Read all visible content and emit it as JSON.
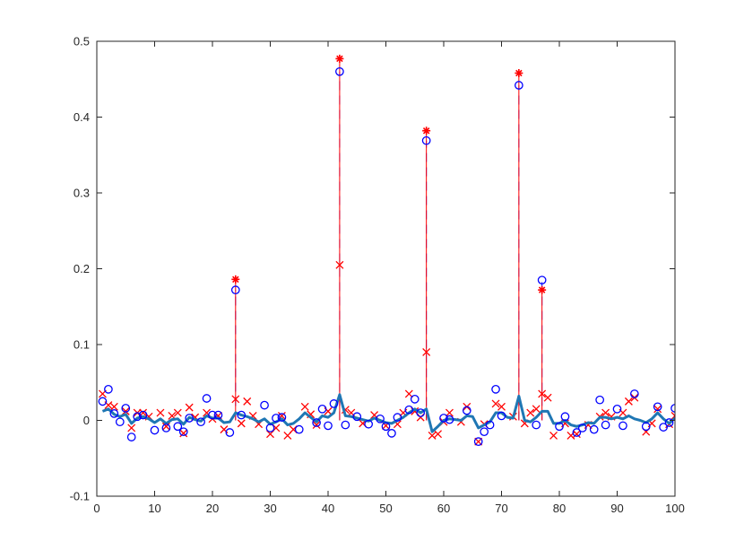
{
  "chart_data": {
    "type": "scatter",
    "title": "",
    "xlabel": "",
    "ylabel": "",
    "xlim": [
      0,
      100
    ],
    "ylim": [
      -0.1,
      0.5
    ],
    "xticks": [
      0,
      10,
      20,
      30,
      40,
      50,
      60,
      70,
      80,
      90,
      100
    ],
    "yticks": [
      -0.1,
      0,
      0.1,
      0.2,
      0.3,
      0.4,
      0.5
    ],
    "xtick_labels": [
      "0",
      "10",
      "20",
      "30",
      "40",
      "50",
      "60",
      "70",
      "80",
      "90",
      "100"
    ],
    "ytick_labels": [
      "-0.1",
      "0",
      "0.1",
      "0.2",
      "0.3",
      "0.4",
      "0.5"
    ],
    "grid": false,
    "legend": null,
    "series": [
      {
        "marker": "star",
        "style": "stem-solid",
        "color": "#ff0000",
        "x": [
          24,
          42,
          57,
          73,
          77
        ],
        "y": [
          0.186,
          0.477,
          0.382,
          0.458,
          0.172
        ]
      },
      {
        "marker": "circle",
        "style": "stem-dashed",
        "color": "#0000ff",
        "x": [
          1,
          2,
          3,
          4,
          5,
          6,
          7,
          8,
          10,
          12,
          14,
          15,
          16,
          18,
          19,
          20,
          21,
          23,
          24,
          25,
          29,
          30,
          31,
          32,
          35,
          38,
          39,
          40,
          41,
          42,
          43,
          45,
          47,
          49,
          50,
          51,
          52,
          54,
          55,
          56,
          57,
          60,
          61,
          64,
          66,
          67,
          68,
          69,
          70,
          73,
          76,
          77,
          80,
          81,
          83,
          84,
          86,
          87,
          88,
          90,
          91,
          93,
          95,
          97,
          98,
          99,
          100
        ],
        "y": [
          0.025,
          0.041,
          0.009,
          -0.002,
          0.016,
          -0.022,
          0.005,
          0.007,
          -0.013,
          -0.01,
          -0.008,
          -0.015,
          0.003,
          -0.002,
          0.029,
          0.007,
          0.007,
          -0.016,
          0.172,
          0.007,
          0.02,
          -0.01,
          0.003,
          0.004,
          -0.012,
          -0.003,
          0.015,
          -0.007,
          0.022,
          0.46,
          -0.006,
          0.005,
          -0.005,
          0.002,
          -0.008,
          -0.017,
          0.004,
          0.014,
          0.028,
          0.01,
          0.369,
          0.003,
          0.001,
          0.013,
          -0.028,
          -0.015,
          -0.006,
          0.041,
          0.006,
          0.442,
          -0.006,
          0.185,
          -0.008,
          0.005,
          -0.016,
          -0.01,
          -0.012,
          0.027,
          -0.006,
          0.015,
          -0.007,
          0.035,
          -0.008,
          0.018,
          -0.009,
          -0.003,
          0.016
        ]
      },
      {
        "marker": "x",
        "style": "markers",
        "color": "#ff0000",
        "x": [
          1,
          2,
          3,
          5,
          6,
          7,
          8,
          9,
          11,
          12,
          13,
          14,
          15,
          16,
          17,
          19,
          20,
          21,
          22,
          24,
          25,
          26,
          27,
          28,
          30,
          31,
          32,
          33,
          34,
          36,
          37,
          38,
          40,
          42,
          43,
          44,
          46,
          48,
          50,
          52,
          53,
          54,
          55,
          56,
          57,
          58,
          59,
          60,
          61,
          63,
          64,
          66,
          67,
          69,
          70,
          72,
          74,
          75,
          76,
          77,
          78,
          79,
          81,
          82,
          83,
          85,
          87,
          88,
          89,
          91,
          92,
          93,
          95,
          96,
          97,
          99,
          100
        ],
        "y": [
          0.035,
          0.02,
          0.018,
          0.012,
          -0.01,
          0.01,
          0.01,
          0.005,
          0.01,
          -0.008,
          0.006,
          0.01,
          -0.017,
          0.017,
          0.004,
          0.01,
          0.002,
          0.006,
          -0.012,
          0.028,
          -0.004,
          0.025,
          0.006,
          -0.005,
          -0.018,
          -0.01,
          0.006,
          -0.02,
          -0.012,
          0.018,
          0.008,
          -0.006,
          0.012,
          0.205,
          0.014,
          0.01,
          -0.004,
          0.007,
          -0.007,
          -0.005,
          0.01,
          0.035,
          0.012,
          0.004,
          0.09,
          -0.02,
          -0.018,
          -0.002,
          0.01,
          -0.002,
          0.018,
          -0.028,
          -0.005,
          0.022,
          0.018,
          0.005,
          -0.004,
          0.01,
          0.015,
          0.035,
          0.03,
          -0.02,
          -0.004,
          -0.02,
          -0.018,
          -0.006,
          0.005,
          0.01,
          0.005,
          0.01,
          0.025,
          0.03,
          -0.015,
          -0.004,
          0.015,
          -0.005,
          0.006
        ]
      },
      {
        "marker": "none",
        "style": "thick-line",
        "color": "#1f77b4",
        "x": [
          1,
          2,
          3,
          4,
          5,
          6,
          7,
          8,
          9,
          10,
          11,
          12,
          13,
          14,
          15,
          16,
          17,
          18,
          19,
          20,
          21,
          22,
          23,
          24,
          25,
          26,
          27,
          28,
          29,
          30,
          31,
          32,
          33,
          34,
          35,
          36,
          37,
          38,
          39,
          40,
          41,
          42,
          43,
          44,
          45,
          46,
          47,
          48,
          49,
          50,
          51,
          52,
          53,
          54,
          55,
          56,
          57,
          58,
          59,
          60,
          61,
          62,
          63,
          64,
          65,
          66,
          67,
          68,
          69,
          70,
          71,
          72,
          73,
          74,
          75,
          76,
          77,
          78,
          79,
          80,
          81,
          82,
          83,
          84,
          85,
          86,
          87,
          88,
          89,
          90,
          91,
          92,
          93,
          94,
          95,
          96,
          97,
          98,
          99,
          100
        ],
        "y": [
          0.012,
          0.015,
          0.008,
          0.005,
          0.008,
          -0.004,
          0.003,
          0.005,
          0.002,
          -0.003,
          0.002,
          -0.004,
          0.001,
          0.002,
          -0.005,
          0.004,
          0.001,
          -0.001,
          0.006,
          0.003,
          0.003,
          -0.003,
          -0.002,
          0.01,
          0.007,
          0.005,
          0.002,
          -0.002,
          0.002,
          -0.005,
          -0.002,
          0.002,
          -0.006,
          -0.004,
          0.002,
          0.01,
          0.004,
          -0.002,
          0.006,
          0.004,
          0.01,
          0.034,
          0.006,
          0.005,
          0.003,
          0.001,
          -0.001,
          0.003,
          0.0,
          -0.003,
          -0.004,
          0.0,
          0.004,
          0.01,
          0.015,
          0.01,
          0.015,
          -0.015,
          -0.008,
          0.0,
          0.002,
          0.001,
          0.0,
          0.006,
          0.005,
          -0.01,
          -0.006,
          -0.002,
          0.01,
          0.01,
          0.004,
          0.003,
          0.032,
          0.0,
          -0.002,
          0.004,
          0.012,
          0.012,
          -0.004,
          -0.004,
          0.0,
          -0.006,
          -0.008,
          -0.006,
          -0.003,
          -0.004,
          0.004,
          0.004,
          0.002,
          0.004,
          0.002,
          0.006,
          0.002,
          0.0,
          -0.003,
          0.002,
          0.01,
          0.002,
          -0.004,
          0.003
        ]
      }
    ]
  }
}
